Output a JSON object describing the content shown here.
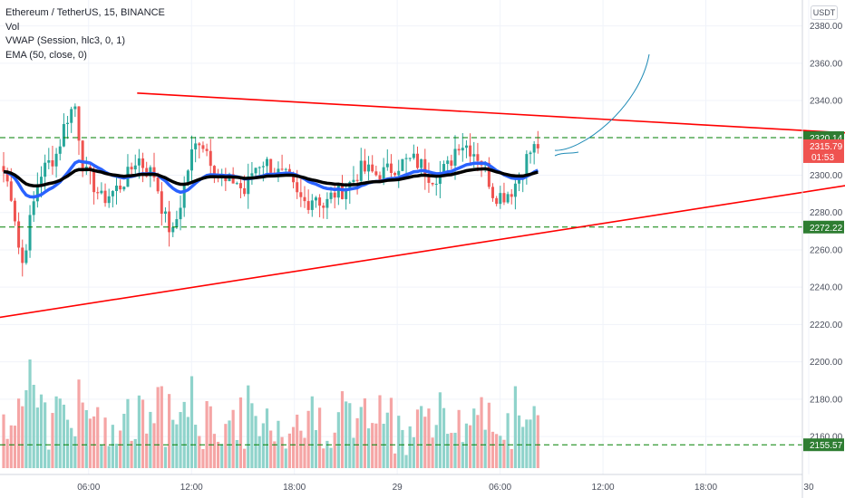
{
  "legend": {
    "symbol": "Ethereum / TetherUS, 15, BINANCE",
    "volume": "Vol",
    "vwap": "VWAP (Session, hlc3, 0, 1)",
    "ema": "EMA (50, close, 0)"
  },
  "currency_label": "USDT",
  "colors": {
    "up": "#26a69a",
    "down": "#ef5350",
    "vol_up": "#8fd3cb",
    "vol_down": "#f5a5a5",
    "vwap": "#2962ff",
    "ema": "#000000",
    "trendline": "#ff0000",
    "level": "#008000",
    "drawing": "#1f8bb6",
    "grid": "#f0f3fa"
  },
  "chart_data": {
    "type": "candlestick",
    "symbol": "ETHUSDT",
    "interval": "15",
    "exchange": "BINANCE",
    "y_axis": {
      "min": 2145,
      "max": 2390,
      "ticks": [
        2160,
        2180,
        2200,
        2220,
        2240,
        2260,
        2280,
        2300,
        2320,
        2340,
        2360,
        2380
      ]
    },
    "x_axis": {
      "range_hours": [
        0,
        26.3
      ],
      "ticks": [
        {
          "label": "06:00",
          "hour": 5.17
        },
        {
          "label": "12:00",
          "hour": 11.17
        },
        {
          "label": "18:00",
          "hour": 17.17
        },
        {
          "label": "29",
          "hour": 23.17
        },
        {
          "label": "06:00",
          "hour": 29.17
        },
        {
          "label": "12:00",
          "hour": 35.17
        },
        {
          "label": "18:00",
          "hour": 41.17
        },
        {
          "label": "30",
          "hour": 47.17
        }
      ]
    },
    "ohlc_anchors": [
      [
        0,
        2302
      ],
      [
        1,
        2288
      ],
      [
        2,
        2250
      ],
      [
        3,
        2276
      ],
      [
        4,
        2300
      ],
      [
        5,
        2306
      ],
      [
        6,
        2312
      ],
      [
        7,
        2330
      ],
      [
        8,
        2338
      ],
      [
        9,
        2302
      ],
      [
        10,
        2296
      ],
      [
        11,
        2287
      ],
      [
        12,
        2290
      ],
      [
        13,
        2294
      ],
      [
        14,
        2300
      ],
      [
        15,
        2310
      ],
      [
        16,
        2303
      ],
      [
        17,
        2300
      ],
      [
        18,
        2278
      ],
      [
        19,
        2268
      ],
      [
        20,
        2288
      ],
      [
        21,
        2310
      ],
      [
        22,
        2320
      ],
      [
        23,
        2312
      ],
      [
        24,
        2300
      ],
      [
        25,
        2295
      ],
      [
        26,
        2298
      ],
      [
        27,
        2290
      ],
      [
        28,
        2303
      ],
      [
        29,
        2308
      ],
      [
        30,
        2305
      ],
      [
        31,
        2300
      ],
      [
        32,
        2298
      ],
      [
        33,
        2288
      ],
      [
        34,
        2285
      ],
      [
        35,
        2290
      ],
      [
        36,
        2283
      ],
      [
        37,
        2290
      ],
      [
        38,
        2292
      ],
      [
        39,
        2296
      ],
      [
        40,
        2303
      ],
      [
        41,
        2302
      ],
      [
        42,
        2300
      ],
      [
        43,
        2302
      ],
      [
        44,
        2305
      ],
      [
        45,
        2307
      ],
      [
        46,
        2308
      ],
      [
        47,
        2305
      ],
      [
        48,
        2299
      ],
      [
        49,
        2301
      ],
      [
        50,
        2305
      ],
      [
        51,
        2318
      ],
      [
        52,
        2316
      ],
      [
        53,
        2312
      ],
      [
        54,
        2305
      ],
      [
        55,
        2290
      ],
      [
        56,
        2289
      ],
      [
        57,
        2292
      ],
      [
        58,
        2300
      ],
      [
        59,
        2312
      ],
      [
        60,
        2316
      ]
    ],
    "series": [
      {
        "name": "VWAP (Session, hlc3, 0, 1)",
        "color": "#2962ff"
      },
      {
        "name": "EMA (50, close, 0)",
        "color": "#000000"
      }
    ],
    "volume": {
      "name": "Vol",
      "max_bar_fraction": 1.0
    },
    "horizontal_levels": [
      2320.14,
      2272.22,
      2155.57
    ],
    "price_tags": [
      {
        "label": "2320.14",
        "value": 2320.14,
        "color": "#2e7d32"
      },
      {
        "label": "2315.79",
        "value": 2315.79,
        "color": "#ef5350",
        "sub": "01:53"
      },
      {
        "label": "2272.22",
        "value": 2272.22,
        "color": "#2e7d32"
      },
      {
        "label": "2155.57",
        "value": 2155.57,
        "color": "#2e7d32"
      }
    ],
    "trendlines": [
      {
        "from": {
          "hour": 8.0,
          "price": 2344
        },
        "to": {
          "hour": 72,
          "price": 2311
        }
      },
      {
        "from": {
          "hour": -2,
          "price": 2221
        },
        "to": {
          "hour": 66.5,
          "price": 2319
        }
      }
    ]
  }
}
